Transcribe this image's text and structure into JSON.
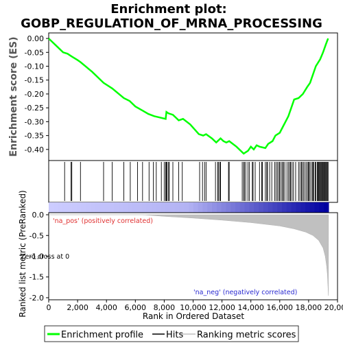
{
  "title_line1": "Enrichment plot:",
  "title_line2": "GOBP_REGULATION_OF_MRNA_PROCESSING",
  "chart_data": [
    {
      "type": "line",
      "ylabel": "Enrichment score (ES)",
      "ylim": [
        -0.44,
        0.02
      ],
      "yticks": [
        0.0,
        -0.05,
        -0.1,
        -0.15,
        -0.2,
        -0.25,
        -0.3,
        -0.35,
        -0.4
      ],
      "ytick_labels": [
        "0.00",
        "-0.05",
        "-0.10",
        "-0.15",
        "-0.20",
        "-0.25",
        "-0.30",
        "-0.35",
        "-0.40"
      ],
      "series": [
        {
          "name": "Enrichment profile",
          "color": "#00ff00",
          "x": [
            0,
            500,
            1000,
            1300,
            1600,
            2000,
            2200,
            3000,
            3800,
            4400,
            5200,
            5600,
            6000,
            6500,
            6900,
            7300,
            7700,
            8100,
            8150,
            8300,
            8600,
            9000,
            9300,
            9800,
            10400,
            10700,
            10900,
            11300,
            11600,
            11700,
            11900,
            12100,
            12300,
            12500,
            13000,
            13500,
            13800,
            14000,
            14200,
            14400,
            14600,
            15000,
            15200,
            15500,
            15700,
            16000,
            16200,
            16400,
            16600,
            16800,
            17000,
            17300,
            17600,
            17900,
            18100,
            18200,
            18500,
            18800,
            19000,
            19200,
            19350
          ],
          "y": [
            0.0,
            -0.025,
            -0.05,
            -0.055,
            -0.065,
            -0.078,
            -0.085,
            -0.12,
            -0.16,
            -0.18,
            -0.215,
            -0.225,
            -0.245,
            -0.26,
            -0.272,
            -0.28,
            -0.285,
            -0.29,
            -0.265,
            -0.27,
            -0.275,
            -0.295,
            -0.29,
            -0.31,
            -0.345,
            -0.35,
            -0.345,
            -0.36,
            -0.375,
            -0.37,
            -0.36,
            -0.37,
            -0.375,
            -0.37,
            -0.39,
            -0.415,
            -0.405,
            -0.39,
            -0.4,
            -0.385,
            -0.39,
            -0.395,
            -0.38,
            -0.37,
            -0.35,
            -0.34,
            -0.32,
            -0.3,
            -0.28,
            -0.25,
            -0.22,
            -0.215,
            -0.2,
            -0.175,
            -0.16,
            -0.145,
            -0.1,
            -0.075,
            -0.05,
            -0.02,
            0.0
          ]
        }
      ]
    },
    {
      "type": "scatter",
      "series": [
        {
          "name": "Hits",
          "color": "#000000",
          "x": [
            1100,
            1550,
            1600,
            2200,
            3800,
            4400,
            5200,
            5650,
            6150,
            6500,
            6950,
            7250,
            7450,
            7800,
            8000,
            8100,
            8150,
            8200,
            8300,
            8350,
            8600,
            9000,
            9250,
            10450,
            10650,
            10800,
            10900,
            11550,
            11700,
            11750,
            11850,
            11900,
            12450,
            12500,
            13400,
            13500,
            13550,
            13650,
            13800,
            13900,
            14100,
            14150,
            14300,
            14600,
            14750,
            14800,
            15000,
            15100,
            15150,
            15300,
            15450,
            15650,
            15750,
            15850,
            15950,
            16000,
            16100,
            16200,
            16250,
            16350,
            16500,
            16600,
            16700,
            16750,
            16850,
            16950,
            17100,
            17300,
            17400,
            17500,
            17550,
            17650,
            17750,
            17850,
            17950,
            18000,
            18050,
            18150,
            18250,
            18300,
            18350,
            18450,
            18500,
            18600,
            18650,
            18700,
            18750,
            18800,
            18850,
            18900,
            18950,
            19000,
            19050,
            19100,
            19150,
            19200,
            19250,
            19300,
            19350
          ]
        }
      ]
    },
    {
      "type": "area",
      "ylabel": "Ranked list metric (PreRanked)",
      "xlabel": "Rank in Ordered Dataset",
      "xlim": [
        0,
        20000
      ],
      "ylim": [
        -2.05,
        0.05
      ],
      "xticks": [
        0,
        2000,
        4000,
        6000,
        8000,
        10000,
        12000,
        14000,
        16000,
        18000,
        20000
      ],
      "xtick_labels": [
        "0",
        "2,000",
        "4,000",
        "6,000",
        "8,000",
        "10,000",
        "12,000",
        "14,000",
        "16,000",
        "18,000",
        "20,000"
      ],
      "yticks": [
        0.0,
        -0.5,
        -1.0,
        -1.5,
        -2.0
      ],
      "ytick_labels": [
        "0.0",
        "-0.5",
        "-1.0",
        "-1.5",
        "-2.0"
      ],
      "series": [
        {
          "name": "Ranking metric scores",
          "color": "#c0c0c0",
          "x": [
            0,
            6500,
            8000,
            10000,
            12000,
            14000,
            16000,
            17000,
            17800,
            18300,
            18700,
            19000,
            19150,
            19250,
            19300,
            19350,
            19370,
            19380
          ],
          "y": [
            0.0,
            0.0,
            -0.04,
            -0.08,
            -0.13,
            -0.19,
            -0.27,
            -0.34,
            -0.42,
            -0.5,
            -0.62,
            -0.8,
            -1.0,
            -1.25,
            -1.45,
            -1.8,
            -1.95,
            0.0
          ]
        }
      ],
      "annotations": [
        {
          "text": "'na_pos' (positively correlated)",
          "color": "#e03030"
        },
        {
          "text": "'na_neg' (negatively correlated)",
          "color": "#2828d0"
        },
        {
          "text": "Zero cross at 0",
          "color": "#000000"
        }
      ]
    }
  ],
  "legend": [
    {
      "label": "Enrichment profile",
      "color": "#00ff00"
    },
    {
      "label": "Hits",
      "color": "#000000"
    },
    {
      "label": "Ranking metric scores",
      "color": "#c0c0c0"
    }
  ],
  "colors": {
    "heat_pos": "#ccccff",
    "heat_neg": "#0000a0"
  }
}
